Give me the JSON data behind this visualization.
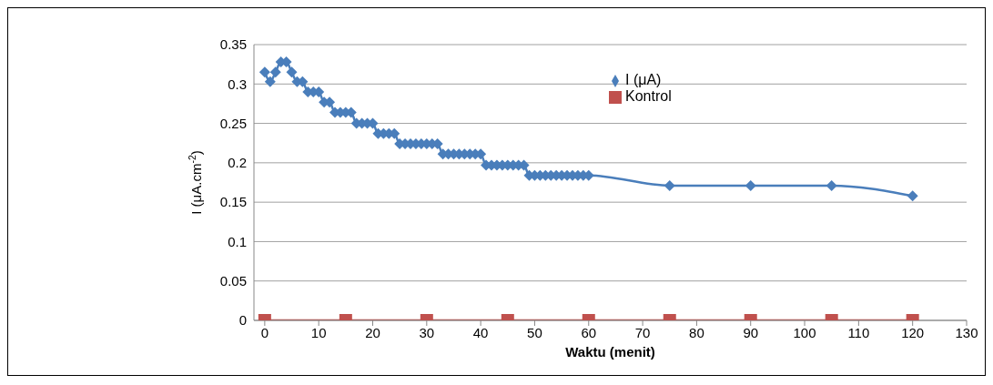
{
  "chart_data": {
    "type": "line",
    "xlabel": "Waktu (menit)",
    "ylabel": "I (μA.cm$^{-2}$)",
    "xlim": [
      -2,
      130
    ],
    "xticks": [
      0,
      10,
      20,
      30,
      40,
      50,
      60,
      70,
      80,
      90,
      100,
      110,
      120,
      130
    ],
    "ylim": [
      0,
      0.35
    ],
    "yticks": [
      0,
      0.05,
      0.1,
      0.15,
      0.2,
      0.25,
      0.3,
      0.35
    ],
    "grid": "y",
    "legend": "top right",
    "series": [
      {
        "name": "I (μA)",
        "color": "#4a7ebb",
        "marker": "diamond",
        "x": [
          0,
          1,
          2,
          3,
          4,
          5,
          6,
          7,
          8,
          9,
          10,
          11,
          12,
          13,
          14,
          15,
          16,
          17,
          18,
          19,
          20,
          21,
          22,
          23,
          24,
          25,
          26,
          27,
          28,
          29,
          30,
          31,
          32,
          33,
          34,
          35,
          36,
          37,
          38,
          39,
          40,
          41,
          42,
          43,
          44,
          45,
          46,
          47,
          48,
          49,
          50,
          51,
          52,
          53,
          54,
          55,
          56,
          57,
          58,
          59,
          60,
          75,
          90,
          105,
          120
        ],
        "values": [
          0.315,
          0.303,
          0.315,
          0.328,
          0.328,
          0.315,
          0.303,
          0.303,
          0.29,
          0.29,
          0.29,
          0.277,
          0.277,
          0.264,
          0.264,
          0.264,
          0.264,
          0.25,
          0.25,
          0.25,
          0.25,
          0.237,
          0.237,
          0.237,
          0.237,
          0.224,
          0.224,
          0.224,
          0.224,
          0.224,
          0.224,
          0.224,
          0.224,
          0.211,
          0.211,
          0.211,
          0.211,
          0.211,
          0.211,
          0.211,
          0.211,
          0.197,
          0.197,
          0.197,
          0.197,
          0.197,
          0.197,
          0.197,
          0.197,
          0.184,
          0.184,
          0.184,
          0.184,
          0.184,
          0.184,
          0.184,
          0.184,
          0.184,
          0.184,
          0.184,
          0.184,
          0.171,
          0.171,
          0.171,
          0.158
        ]
      },
      {
        "name": "Kontrol",
        "color": "#c0504d",
        "marker": "square",
        "x": [
          0,
          15,
          30,
          45,
          60,
          75,
          90,
          105,
          120
        ],
        "values": [
          0,
          0,
          0,
          0,
          0,
          0,
          0,
          0,
          0
        ]
      }
    ]
  }
}
